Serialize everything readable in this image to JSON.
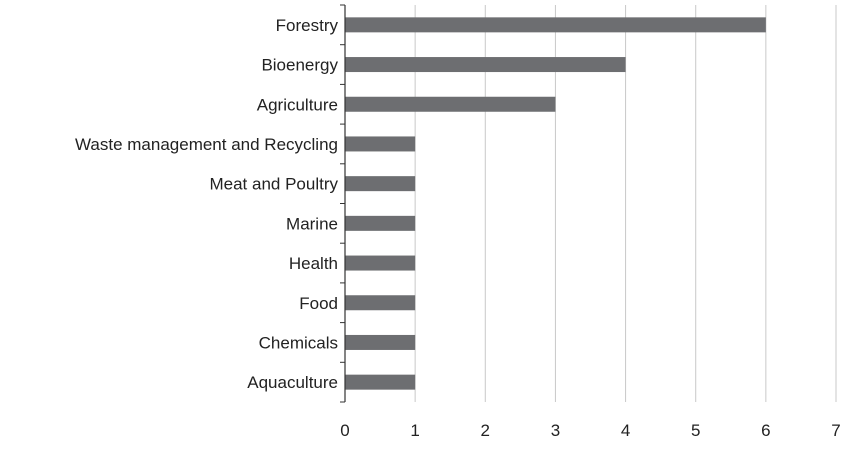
{
  "chart_data": {
    "type": "bar",
    "orientation": "horizontal",
    "title": "",
    "xlabel": "",
    "ylabel": "",
    "categories": [
      "Forestry",
      "Bioenergy",
      "Agriculture",
      "Waste management and Recycling",
      "Meat and Poultry",
      "Marine",
      "Health",
      "Food",
      "Chemicals",
      "Aquaculture"
    ],
    "values": [
      6,
      4,
      3,
      1,
      1,
      1,
      1,
      1,
      1,
      1
    ],
    "xlim": [
      0,
      7
    ],
    "xticks": [
      "0",
      "1",
      "2",
      "3",
      "4",
      "5",
      "6",
      "7"
    ],
    "grid": "vertical",
    "legend": "none",
    "colors": {
      "bar": "#6d6e71",
      "grid": "#c8c8c8",
      "axis": "#333333"
    }
  }
}
